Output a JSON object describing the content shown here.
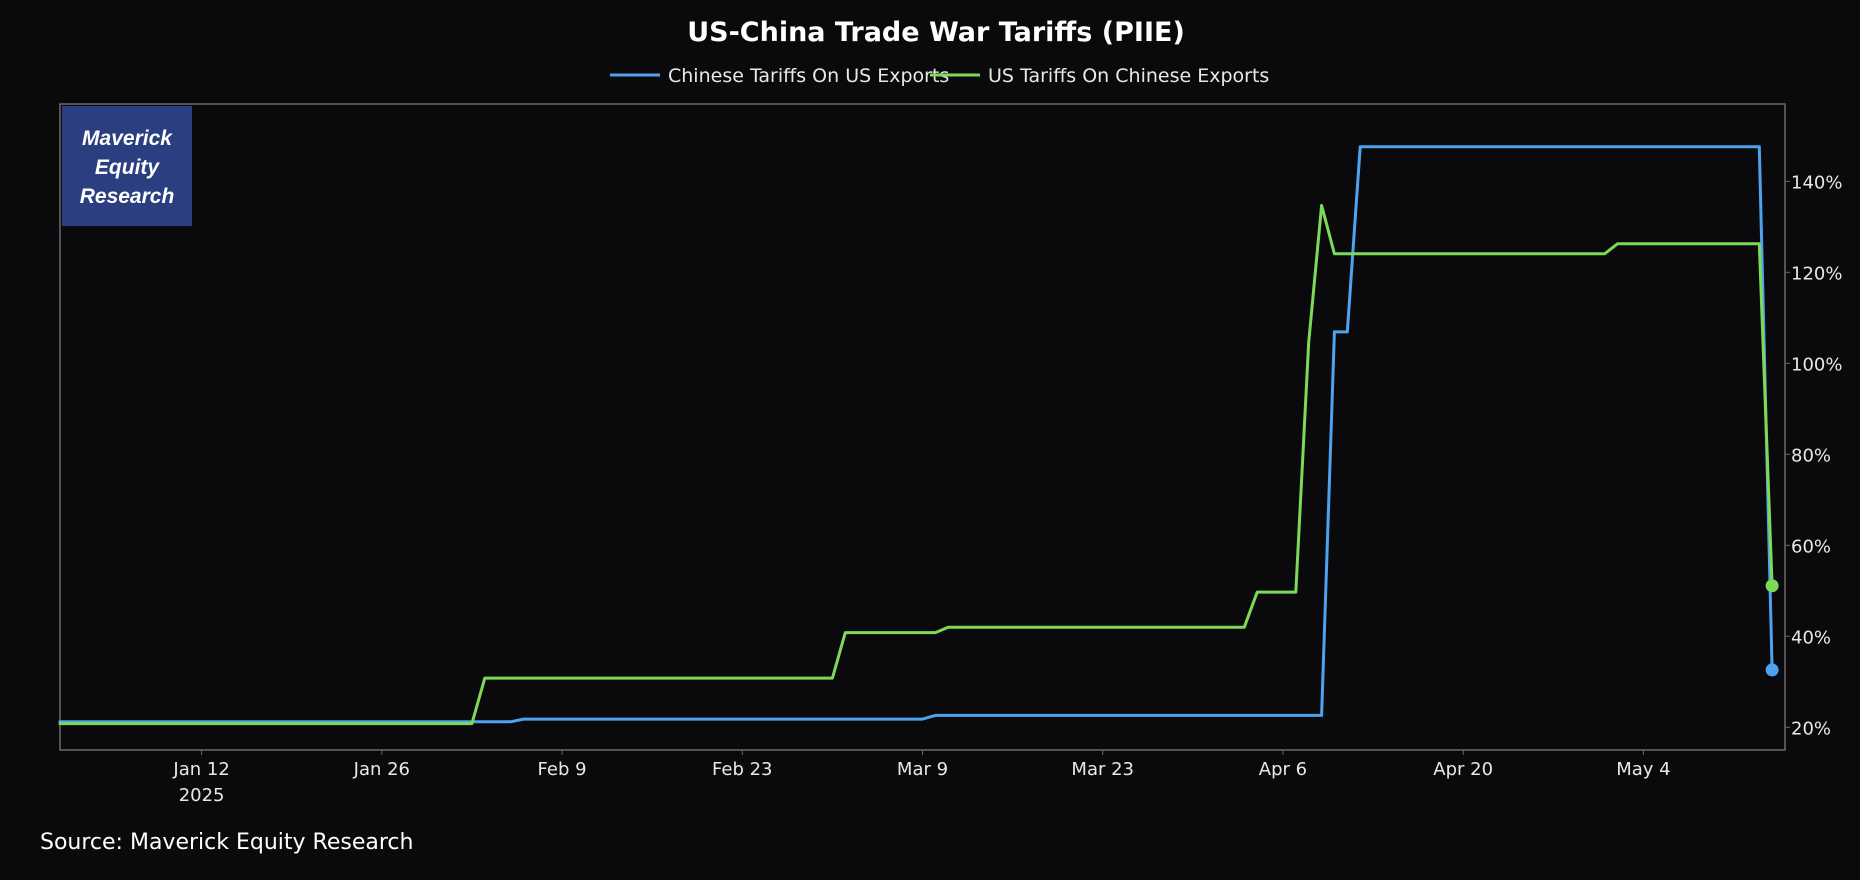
{
  "chart_data": {
    "type": "line",
    "title": "US-China Trade War Tariffs (PIIE)",
    "xlabel": "",
    "ylabel": "",
    "x_range": [
      "2025-01-01",
      "2025-05-15"
    ],
    "ylim": [
      15,
      157
    ],
    "y_ticks": [
      20,
      40,
      60,
      80,
      100,
      120,
      140
    ],
    "y_tick_format": "percent",
    "x_ticks": [
      {
        "date": "2025-01-12",
        "label": "Jan 12",
        "sublabel": "2025"
      },
      {
        "date": "2025-01-26",
        "label": "Jan 26"
      },
      {
        "date": "2025-02-09",
        "label": "Feb 9"
      },
      {
        "date": "2025-02-23",
        "label": "Feb 23"
      },
      {
        "date": "2025-03-09",
        "label": "Mar 9"
      },
      {
        "date": "2025-03-23",
        "label": "Mar 23"
      },
      {
        "date": "2025-04-06",
        "label": "Apr 6"
      },
      {
        "date": "2025-04-20",
        "label": "Apr 20"
      },
      {
        "date": "2025-05-04",
        "label": "May 4"
      }
    ],
    "grid": false,
    "legend_position": "top-center",
    "series": [
      {
        "name": "Chinese Tariffs On US Exports",
        "color": "#4da3f0",
        "points": [
          [
            "2025-01-01",
            21.2
          ],
          [
            "2025-02-05",
            21.2
          ],
          [
            "2025-02-06",
            21.8
          ],
          [
            "2025-03-09",
            21.8
          ],
          [
            "2025-03-10",
            22.6
          ],
          [
            "2025-04-09",
            22.6
          ],
          [
            "2025-04-10",
            106.9
          ],
          [
            "2025-04-11",
            106.9
          ],
          [
            "2025-04-12",
            147.6
          ],
          [
            "2025-05-13",
            147.6
          ],
          [
            "2025-05-14",
            32.6
          ]
        ],
        "end_marker": true
      },
      {
        "name": "US Tariffs On Chinese Exports",
        "color": "#7ed957",
        "points": [
          [
            "2025-01-01",
            20.8
          ],
          [
            "2025-02-02",
            20.8
          ],
          [
            "2025-02-03",
            30.8
          ],
          [
            "2025-03-02",
            30.8
          ],
          [
            "2025-03-03",
            40.8
          ],
          [
            "2025-03-10",
            40.8
          ],
          [
            "2025-03-11",
            42.0
          ],
          [
            "2025-04-03",
            42.0
          ],
          [
            "2025-04-04",
            49.7
          ],
          [
            "2025-04-07",
            49.7
          ],
          [
            "2025-04-08",
            104.6
          ],
          [
            "2025-04-09",
            134.7
          ],
          [
            "2025-04-10",
            124.1
          ],
          [
            "2025-05-01",
            124.1
          ],
          [
            "2025-05-02",
            126.3
          ],
          [
            "2025-05-13",
            126.3
          ],
          [
            "2025-05-14",
            51.1
          ]
        ],
        "end_marker": true
      }
    ],
    "source": "Source: Maverick Equity Research",
    "brand": [
      "Maverick",
      "Equity",
      "Research"
    ],
    "colors": {
      "background": "#0a0a0c",
      "frame": "#6a6a6a",
      "brand_box": "#2b3e80"
    }
  }
}
